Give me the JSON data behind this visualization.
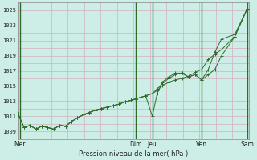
{
  "background_color": "#cceee6",
  "grid_color_h": "#d4b8c8",
  "grid_color_v": "#d4b8c8",
  "vline_color": "#2d6e2d",
  "line_color": "#2d6e2d",
  "marker_color": "#2d6e2d",
  "xlabel": "Pression niveau de la mer( hPa )",
  "ylim": [
    1008.0,
    1026.0
  ],
  "xlim": [
    0,
    7.0
  ],
  "ytick_vals": [
    1009,
    1011,
    1013,
    1015,
    1017,
    1019,
    1021,
    1023,
    1025
  ],
  "day_labels": [
    "Mer",
    "Dim",
    "Jeu",
    "Ven",
    "Sam"
  ],
  "day_x_positions": [
    0.05,
    3.57,
    4.07,
    5.57,
    6.95
  ],
  "vlines_x": [
    0.05,
    3.57,
    4.07,
    5.57,
    6.95
  ],
  "x_values": [
    0.0,
    0.18,
    0.36,
    0.54,
    0.72,
    0.9,
    1.08,
    1.26,
    1.44,
    1.62,
    1.8,
    1.98,
    2.16,
    2.34,
    2.52,
    2.7,
    2.88,
    3.06,
    3.24,
    3.42,
    3.57,
    3.72,
    3.87,
    4.07,
    4.22,
    4.37,
    4.57,
    4.77,
    4.97,
    5.17,
    5.37,
    5.57,
    5.77,
    5.97,
    6.17,
    6.57,
    6.95
  ],
  "series1": [
    1011.3,
    1009.5,
    1009.8,
    1009.3,
    1009.7,
    1009.5,
    1009.3,
    1009.8,
    1009.7,
    1010.3,
    1010.8,
    1011.2,
    1011.5,
    1011.8,
    1012.0,
    1012.2,
    1012.4,
    1012.6,
    1012.9,
    1013.1,
    1013.3,
    1013.5,
    1013.7,
    1014.0,
    1014.4,
    1015.0,
    1015.5,
    1015.8,
    1016.0,
    1016.3,
    1016.8,
    1017.2,
    1018.5,
    1019.2,
    1019.8,
    1021.5,
    1025.2
  ],
  "series2": [
    1011.3,
    1009.5,
    1009.8,
    1009.3,
    1009.7,
    1009.5,
    1009.3,
    1009.8,
    1009.7,
    1010.3,
    1010.8,
    1011.2,
    1011.5,
    1011.8,
    1012.0,
    1012.2,
    1012.4,
    1012.6,
    1012.9,
    1013.1,
    1013.3,
    1013.5,
    1013.7,
    1014.0,
    1014.6,
    1015.3,
    1016.0,
    1016.5,
    1016.7,
    1016.2,
    1016.5,
    1015.8,
    1016.5,
    1017.2,
    1019.0,
    1021.5,
    1025.2
  ],
  "series3": [
    1011.3,
    1009.5,
    1009.8,
    1009.3,
    1009.7,
    1009.5,
    1009.3,
    1009.8,
    1009.7,
    1010.3,
    1010.8,
    1011.2,
    1011.5,
    1011.8,
    1012.0,
    1012.2,
    1012.4,
    1012.6,
    1012.9,
    1013.1,
    1013.3,
    1013.5,
    1013.7,
    1011.0,
    1014.0,
    1015.5,
    1016.2,
    1016.7,
    1016.7,
    1016.2,
    1016.5,
    1015.8,
    1017.2,
    1019.5,
    1021.2,
    1021.8,
    1025.2
  ]
}
